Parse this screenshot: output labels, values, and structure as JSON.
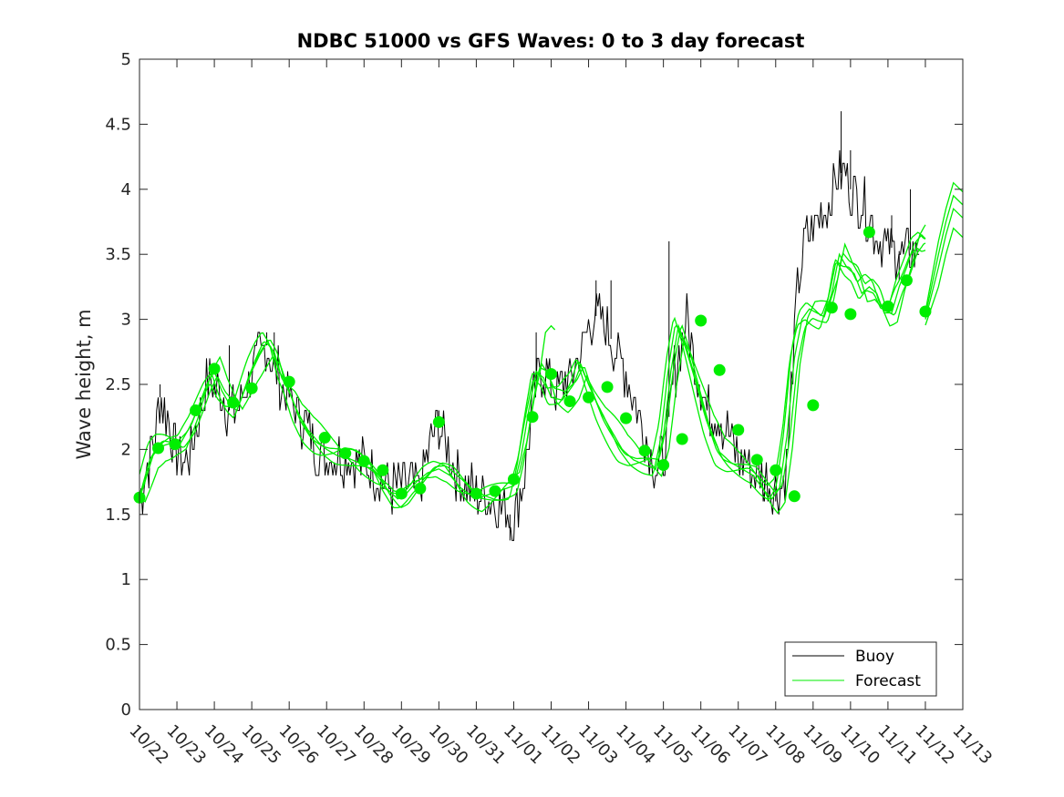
{
  "chart_data": {
    "type": "line",
    "title": "NDBC 51000 vs GFS Waves: 0 to 3 day forecast",
    "xlabel": "",
    "ylabel": "Wave height, m",
    "xlim": [
      0,
      22
    ],
    "ylim": [
      0,
      5
    ],
    "x_tick_labels": [
      "10/22",
      "10/23",
      "10/24",
      "10/25",
      "10/26",
      "10/27",
      "10/28",
      "10/29",
      "10/30",
      "10/31",
      "11/01",
      "11/02",
      "11/03",
      "11/04",
      "11/05",
      "11/06",
      "11/07",
      "11/08",
      "11/09",
      "11/10",
      "11/11",
      "11/12",
      "11/13"
    ],
    "y_ticks": [
      0,
      0.5,
      1,
      1.5,
      2,
      2.5,
      3,
      3.5,
      4,
      4.5,
      5
    ],
    "y_tick_labels": [
      "0",
      "0.5",
      "1",
      "1.5",
      "2",
      "2.5",
      "3",
      "3.5",
      "4",
      "4.5",
      "5"
    ],
    "grid": false,
    "legend_position": "bottom-right",
    "colors": {
      "buoy": "#000000",
      "forecast": "#00ee00"
    },
    "buoy_key_points": [
      [
        0.0,
        1.6
      ],
      [
        0.15,
        1.8
      ],
      [
        0.4,
        2.1
      ],
      [
        0.55,
        2.4
      ],
      [
        0.75,
        2.25
      ],
      [
        0.9,
        2.0
      ],
      [
        1.0,
        2.0
      ],
      [
        1.2,
        1.9
      ],
      [
        1.4,
        2.0
      ],
      [
        1.6,
        2.3
      ],
      [
        1.8,
        2.5
      ],
      [
        2.0,
        2.5
      ],
      [
        2.2,
        2.4
      ],
      [
        2.4,
        2.3
      ],
      [
        2.6,
        2.3
      ],
      [
        2.8,
        2.45
      ],
      [
        3.0,
        2.55
      ],
      [
        3.2,
        2.7
      ],
      [
        3.4,
        2.8
      ],
      [
        3.6,
        2.65
      ],
      [
        3.8,
        2.5
      ],
      [
        4.0,
        2.4
      ],
      [
        4.2,
        2.3
      ],
      [
        4.4,
        2.2
      ],
      [
        4.6,
        2.1
      ],
      [
        4.8,
        1.95
      ],
      [
        5.0,
        1.95
      ],
      [
        5.3,
        1.95
      ],
      [
        5.6,
        1.95
      ],
      [
        5.9,
        1.9
      ],
      [
        6.2,
        1.85
      ],
      [
        6.5,
        1.75
      ],
      [
        6.8,
        1.7
      ],
      [
        7.2,
        1.75
      ],
      [
        7.5,
        1.7
      ],
      [
        7.7,
        1.95
      ],
      [
        7.85,
        2.15
      ],
      [
        8.0,
        2.2
      ],
      [
        8.2,
        2.05
      ],
      [
        8.5,
        1.8
      ],
      [
        8.8,
        1.7
      ],
      [
        9.1,
        1.65
      ],
      [
        9.4,
        1.6
      ],
      [
        9.7,
        1.55
      ],
      [
        9.9,
        1.5
      ],
      [
        10.0,
        1.45
      ],
      [
        10.1,
        1.6
      ],
      [
        10.3,
        1.85
      ],
      [
        10.5,
        2.3
      ],
      [
        10.7,
        2.6
      ],
      [
        10.9,
        2.55
      ],
      [
        11.1,
        2.45
      ],
      [
        11.3,
        2.5
      ],
      [
        11.5,
        2.55
      ],
      [
        11.7,
        2.7
      ],
      [
        11.9,
        2.85
      ],
      [
        12.1,
        3.0
      ],
      [
        12.3,
        3.05
      ],
      [
        12.5,
        2.9
      ],
      [
        12.7,
        2.8
      ],
      [
        12.9,
        2.65
      ],
      [
        13.1,
        2.5
      ],
      [
        13.3,
        2.3
      ],
      [
        13.5,
        2.1
      ],
      [
        13.7,
        1.95
      ],
      [
        13.85,
        1.8
      ],
      [
        14.0,
        1.95
      ],
      [
        14.1,
        2.1
      ],
      [
        14.2,
        2.4
      ],
      [
        14.3,
        2.6
      ],
      [
        14.5,
        2.8
      ],
      [
        14.6,
        3.0
      ],
      [
        14.8,
        2.75
      ],
      [
        15.0,
        2.5
      ],
      [
        15.2,
        2.3
      ],
      [
        15.4,
        2.3
      ],
      [
        15.6,
        2.2
      ],
      [
        15.8,
        2.05
      ],
      [
        16.0,
        1.95
      ],
      [
        16.2,
        1.9
      ],
      [
        16.5,
        1.8
      ],
      [
        16.8,
        1.75
      ],
      [
        17.1,
        1.7
      ],
      [
        17.3,
        1.9
      ],
      [
        17.45,
        2.6
      ],
      [
        17.6,
        3.3
      ],
      [
        17.8,
        3.6
      ],
      [
        18.0,
        3.7
      ],
      [
        18.2,
        3.8
      ],
      [
        18.4,
        3.9
      ],
      [
        18.6,
        4.05
      ],
      [
        18.8,
        4.15
      ],
      [
        19.0,
        4.0
      ],
      [
        19.2,
        3.95
      ],
      [
        19.4,
        3.85
      ],
      [
        19.6,
        3.7
      ],
      [
        19.8,
        3.6
      ],
      [
        20.0,
        3.55
      ],
      [
        20.2,
        3.55
      ],
      [
        20.4,
        3.5
      ],
      [
        20.55,
        3.55
      ],
      [
        20.7,
        3.5
      ],
      [
        20.85,
        3.55
      ]
    ],
    "buoy_spikes": [
      [
        0.55,
        2.5
      ],
      [
        2.4,
        2.8
      ],
      [
        3.4,
        2.9
      ],
      [
        3.6,
        2.9
      ],
      [
        8.0,
        2.3
      ],
      [
        9.9,
        1.3
      ],
      [
        10.6,
        2.9
      ],
      [
        12.2,
        3.3
      ],
      [
        12.6,
        3.3
      ],
      [
        14.15,
        3.6
      ],
      [
        16.7,
        1.6
      ],
      [
        17.0,
        1.6
      ],
      [
        18.75,
        4.6
      ],
      [
        19.0,
        4.3
      ],
      [
        20.3,
        3.3
      ],
      [
        20.6,
        4.0
      ],
      [
        20.1,
        3.8
      ]
    ],
    "forecast_key_points": [
      [
        0.0,
        1.62
      ],
      [
        0.35,
        1.95
      ],
      [
        0.55,
        2.02
      ],
      [
        0.85,
        2.05
      ],
      [
        1.1,
        2.05
      ],
      [
        1.4,
        2.2
      ],
      [
        1.6,
        2.35
      ],
      [
        1.8,
        2.5
      ],
      [
        2.0,
        2.6
      ],
      [
        2.2,
        2.45
      ],
      [
        2.4,
        2.35
      ],
      [
        2.6,
        2.3
      ],
      [
        2.8,
        2.45
      ],
      [
        3.0,
        2.6
      ],
      [
        3.2,
        2.72
      ],
      [
        3.4,
        2.82
      ],
      [
        3.6,
        2.75
      ],
      [
        3.8,
        2.55
      ],
      [
        4.0,
        2.45
      ],
      [
        4.2,
        2.3
      ],
      [
        4.5,
        2.15
      ],
      [
        4.8,
        2.05
      ],
      [
        5.0,
        2.0
      ],
      [
        5.3,
        1.95
      ],
      [
        5.6,
        1.93
      ],
      [
        6.0,
        1.88
      ],
      [
        6.3,
        1.82
      ],
      [
        6.6,
        1.7
      ],
      [
        6.9,
        1.62
      ],
      [
        7.1,
        1.65
      ],
      [
        7.4,
        1.75
      ],
      [
        7.7,
        1.82
      ],
      [
        8.0,
        1.85
      ],
      [
        8.3,
        1.8
      ],
      [
        8.6,
        1.7
      ],
      [
        9.0,
        1.62
      ],
      [
        9.3,
        1.65
      ],
      [
        9.6,
        1.68
      ],
      [
        10.0,
        1.72
      ],
      [
        10.2,
        1.95
      ],
      [
        10.4,
        2.3
      ],
      [
        10.6,
        2.6
      ],
      [
        10.8,
        2.55
      ],
      [
        11.0,
        2.4
      ],
      [
        11.3,
        2.38
      ],
      [
        11.6,
        2.5
      ],
      [
        11.8,
        2.65
      ],
      [
        12.0,
        2.5
      ],
      [
        12.3,
        2.3
      ],
      [
        12.6,
        2.15
      ],
      [
        12.9,
        2.0
      ],
      [
        13.2,
        1.92
      ],
      [
        13.5,
        1.88
      ],
      [
        13.8,
        1.85
      ],
      [
        14.0,
        2.1
      ],
      [
        14.2,
        2.6
      ],
      [
        14.4,
        2.95
      ],
      [
        14.6,
        2.8
      ],
      [
        14.9,
        2.5
      ],
      [
        15.2,
        2.2
      ],
      [
        15.5,
        1.98
      ],
      [
        15.8,
        1.9
      ],
      [
        16.1,
        1.85
      ],
      [
        16.4,
        1.8
      ],
      [
        16.7,
        1.68
      ],
      [
        16.9,
        1.62
      ],
      [
        17.1,
        1.7
      ],
      [
        17.3,
        2.1
      ],
      [
        17.5,
        2.7
      ],
      [
        17.7,
        3.0
      ],
      [
        17.9,
        3.08
      ],
      [
        18.1,
        3.05
      ],
      [
        18.3,
        3.02
      ],
      [
        18.5,
        3.2
      ],
      [
        18.7,
        3.5
      ],
      [
        18.9,
        3.4
      ],
      [
        19.1,
        3.35
      ],
      [
        19.3,
        3.2
      ],
      [
        19.5,
        3.25
      ],
      [
        19.7,
        3.2
      ],
      [
        19.9,
        3.05
      ],
      [
        20.1,
        3.05
      ],
      [
        20.3,
        3.25
      ],
      [
        20.5,
        3.4
      ],
      [
        20.7,
        3.58
      ],
      [
        20.9,
        3.65
      ],
      [
        21.0,
        3.62
      ]
    ],
    "forecast_markers": [
      [
        0.0,
        1.63
      ],
      [
        0.5,
        2.01
      ],
      [
        0.95,
        2.04
      ],
      [
        1.5,
        2.3
      ],
      [
        2.0,
        2.62
      ],
      [
        2.5,
        2.36
      ],
      [
        3.0,
        2.47
      ],
      [
        4.0,
        2.52
      ],
      [
        4.95,
        2.09
      ],
      [
        5.5,
        1.97
      ],
      [
        6.0,
        1.91
      ],
      [
        6.5,
        1.84
      ],
      [
        7.0,
        1.66
      ],
      [
        7.5,
        1.7
      ],
      [
        8.0,
        2.21
      ],
      [
        9.0,
        1.66
      ],
      [
        9.5,
        1.68
      ],
      [
        10.0,
        1.77
      ],
      [
        10.5,
        2.25
      ],
      [
        11.0,
        2.58
      ],
      [
        11.5,
        2.37
      ],
      [
        12.0,
        2.4
      ],
      [
        12.5,
        2.48
      ],
      [
        13.0,
        2.24
      ],
      [
        13.5,
        1.99
      ],
      [
        14.0,
        1.88
      ],
      [
        14.5,
        2.08
      ],
      [
        15.0,
        2.99
      ],
      [
        15.5,
        2.61
      ],
      [
        16.0,
        2.15
      ],
      [
        16.5,
        1.92
      ],
      [
        17.0,
        1.84
      ],
      [
        17.5,
        1.64
      ],
      [
        18.0,
        2.34
      ],
      [
        18.5,
        3.09
      ],
      [
        19.0,
        3.04
      ],
      [
        19.5,
        3.67
      ],
      [
        20.0,
        3.1
      ],
      [
        20.5,
        3.3
      ],
      [
        21.0,
        3.06
      ]
    ],
    "forecast_tail_up": [
      [
        21.35,
        3.4
      ],
      [
        21.55,
        3.65
      ],
      [
        21.75,
        3.85
      ],
      [
        22.0,
        3.78
      ]
    ],
    "forecast_bump_1102": [
      [
        10.7,
        2.6
      ],
      [
        10.85,
        2.9
      ],
      [
        11.0,
        2.95
      ],
      [
        11.1,
        2.92
      ]
    ],
    "series": [
      {
        "name": "Buoy",
        "color": "#000000"
      },
      {
        "name": "Forecast",
        "color": "#00ee00"
      }
    ]
  }
}
